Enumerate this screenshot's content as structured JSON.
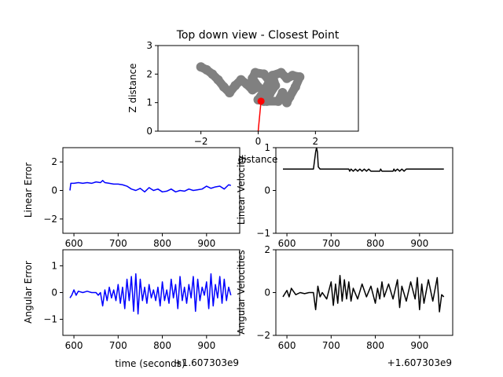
{
  "chart_data": [
    {
      "id": "topdown",
      "type": "scatter",
      "title": "Top down view - Closest Point",
      "xlabel": "distance",
      "ylabel": "Z distance",
      "xlim": [
        -3.5,
        3.5
      ],
      "ylim": [
        0,
        3
      ],
      "xticks": [
        -2,
        0,
        2
      ],
      "yticks": [
        0,
        1,
        2,
        3
      ],
      "cloud_color": "#808080",
      "point_color": "#ff0000",
      "cloud": [
        [
          -2.0,
          2.25
        ],
        [
          -1.8,
          2.15
        ],
        [
          -1.6,
          2.0
        ],
        [
          -1.4,
          1.8
        ],
        [
          -1.2,
          1.55
        ],
        [
          -1.0,
          1.35
        ],
        [
          -0.8,
          1.6
        ],
        [
          -0.6,
          1.8
        ],
        [
          -0.4,
          1.65
        ],
        [
          -0.2,
          1.45
        ],
        [
          0.0,
          1.55
        ],
        [
          -0.2,
          1.85
        ],
        [
          -0.1,
          2.05
        ],
        [
          0.2,
          2.0
        ],
        [
          0.4,
          1.75
        ],
        [
          0.2,
          1.4
        ],
        [
          0.0,
          1.1
        ],
        [
          0.2,
          1.05
        ],
        [
          0.4,
          1.3
        ],
        [
          0.6,
          1.6
        ],
        [
          0.5,
          1.95
        ],
        [
          0.8,
          2.05
        ],
        [
          1.0,
          1.85
        ],
        [
          1.2,
          1.95
        ],
        [
          1.45,
          1.9
        ],
        [
          1.3,
          1.55
        ],
        [
          1.1,
          1.2
        ],
        [
          1.0,
          1.0
        ],
        [
          0.85,
          1.35
        ],
        [
          0.7,
          1.05
        ],
        [
          0.3,
          1.05
        ]
      ],
      "closest_point": {
        "x": 0.1,
        "y": 1.05
      },
      "origin": {
        "x": 0.0,
        "y": 0.0
      }
    },
    {
      "id": "linerr",
      "type": "line",
      "ylabel": "Linear Error",
      "xlim": [
        575,
        975
      ],
      "ylim": [
        -3,
        3
      ],
      "xticks": [
        600,
        700,
        800,
        900
      ],
      "yticks": [
        -2,
        0,
        2
      ],
      "color": "#0000ff",
      "x": [
        591,
        593,
        600,
        610,
        620,
        630,
        640,
        650,
        660,
        665,
        670,
        680,
        690,
        700,
        710,
        720,
        730,
        740,
        750,
        760,
        770,
        780,
        790,
        800,
        810,
        820,
        830,
        840,
        850,
        860,
        870,
        880,
        890,
        900,
        910,
        920,
        930,
        940,
        950,
        955
      ],
      "y": [
        0.0,
        0.5,
        0.5,
        0.55,
        0.5,
        0.55,
        0.5,
        0.6,
        0.55,
        0.7,
        0.55,
        0.5,
        0.45,
        0.45,
        0.4,
        0.3,
        0.1,
        0.0,
        0.15,
        -0.1,
        0.2,
        0.0,
        0.1,
        -0.1,
        -0.05,
        0.1,
        -0.1,
        0.0,
        -0.05,
        0.1,
        0.0,
        0.05,
        0.1,
        0.3,
        0.15,
        0.25,
        0.3,
        0.1,
        0.4,
        0.35
      ]
    },
    {
      "id": "linvel",
      "type": "line",
      "ylabel": "Linear Velocity",
      "xlim": [
        575,
        975
      ],
      "ylim": [
        -1,
        1
      ],
      "xticks": [
        600,
        700,
        800,
        900
      ],
      "yticks": [
        -1,
        0,
        1
      ],
      "color": "#000000",
      "x": [
        591,
        660,
        665,
        667,
        669,
        671,
        675,
        740,
        742,
        745,
        750,
        755,
        760,
        765,
        770,
        775,
        780,
        785,
        790,
        810,
        812,
        815,
        820,
        840,
        842,
        845,
        850,
        855,
        860,
        865,
        870,
        955
      ],
      "y": [
        0.5,
        0.5,
        0.9,
        1.0,
        0.9,
        0.55,
        0.5,
        0.5,
        0.45,
        0.5,
        0.45,
        0.5,
        0.45,
        0.5,
        0.45,
        0.5,
        0.45,
        0.5,
        0.45,
        0.45,
        0.5,
        0.45,
        0.45,
        0.45,
        0.5,
        0.45,
        0.5,
        0.45,
        0.5,
        0.45,
        0.5,
        0.5
      ]
    },
    {
      "id": "angerr",
      "type": "line",
      "ylabel": "Angular Error",
      "xlabel": "time (seconds)",
      "offset": "+1.607303e9",
      "xlim": [
        575,
        975
      ],
      "ylim": [
        -1.6,
        1.6
      ],
      "xticks": [
        600,
        700,
        800,
        900
      ],
      "yticks": [
        -1,
        0,
        1
      ],
      "color": "#0000ff",
      "x": [
        591,
        595,
        600,
        605,
        610,
        620,
        630,
        640,
        650,
        655,
        660,
        665,
        670,
        675,
        680,
        685,
        690,
        695,
        700,
        705,
        710,
        715,
        720,
        725,
        730,
        735,
        740,
        745,
        750,
        755,
        760,
        765,
        770,
        775,
        780,
        785,
        790,
        795,
        800,
        805,
        810,
        815,
        820,
        825,
        830,
        835,
        840,
        845,
        850,
        855,
        860,
        865,
        870,
        875,
        880,
        885,
        890,
        895,
        900,
        905,
        910,
        915,
        920,
        925,
        930,
        935,
        940,
        945,
        950,
        955
      ],
      "y": [
        -0.2,
        -0.1,
        0.1,
        -0.1,
        0.05,
        0.0,
        0.05,
        0.0,
        0.0,
        -0.1,
        0.0,
        -0.5,
        0.1,
        -0.3,
        0.2,
        -0.2,
        0.1,
        -0.3,
        0.3,
        -0.4,
        0.2,
        -0.6,
        0.5,
        -0.3,
        0.6,
        -0.7,
        0.7,
        -0.8,
        0.5,
        -0.3,
        0.2,
        -0.4,
        0.3,
        -0.2,
        0.1,
        -0.3,
        0.2,
        -0.5,
        0.4,
        -0.3,
        0.1,
        -0.4,
        0.5,
        -0.2,
        0.3,
        -0.6,
        0.6,
        -0.3,
        0.2,
        -0.4,
        0.3,
        -0.2,
        0.6,
        -0.7,
        0.5,
        -0.3,
        0.2,
        -0.1,
        0.4,
        -0.6,
        0.7,
        -0.5,
        0.3,
        -0.2,
        0.6,
        -0.4,
        0.5,
        -0.3,
        0.2,
        -0.1
      ]
    },
    {
      "id": "angvel",
      "type": "line",
      "ylabel": "Angular Velocities",
      "offset": "+1.607303e9",
      "xlim": [
        575,
        975
      ],
      "ylim": [
        -2,
        2
      ],
      "xticks": [
        600,
        700,
        800,
        900
      ],
      "yticks": [
        -2,
        0,
        2
      ],
      "color": "#000000",
      "x": [
        591,
        600,
        605,
        610,
        620,
        630,
        640,
        650,
        660,
        665,
        670,
        675,
        680,
        690,
        700,
        705,
        710,
        715,
        720,
        725,
        730,
        735,
        740,
        745,
        750,
        760,
        770,
        780,
        790,
        800,
        805,
        810,
        815,
        820,
        830,
        840,
        850,
        855,
        860,
        870,
        880,
        890,
        895,
        900,
        905,
        910,
        920,
        930,
        940,
        945,
        950,
        955
      ],
      "y": [
        -0.2,
        0.1,
        -0.2,
        0.2,
        -0.1,
        0.0,
        -0.05,
        0.0,
        0.0,
        -0.8,
        0.3,
        -0.2,
        0.0,
        -0.3,
        0.5,
        -0.6,
        0.4,
        -0.5,
        0.8,
        -0.4,
        0.6,
        -0.3,
        0.5,
        -0.4,
        0.2,
        -0.3,
        0.4,
        -0.2,
        0.3,
        -0.5,
        0.2,
        -0.3,
        0.5,
        -0.2,
        0.4,
        -0.3,
        0.6,
        -0.7,
        0.3,
        -0.4,
        0.5,
        -0.3,
        0.7,
        -0.8,
        0.4,
        -0.5,
        0.6,
        -0.4,
        0.7,
        -0.9,
        -0.1,
        -0.2
      ]
    }
  ]
}
